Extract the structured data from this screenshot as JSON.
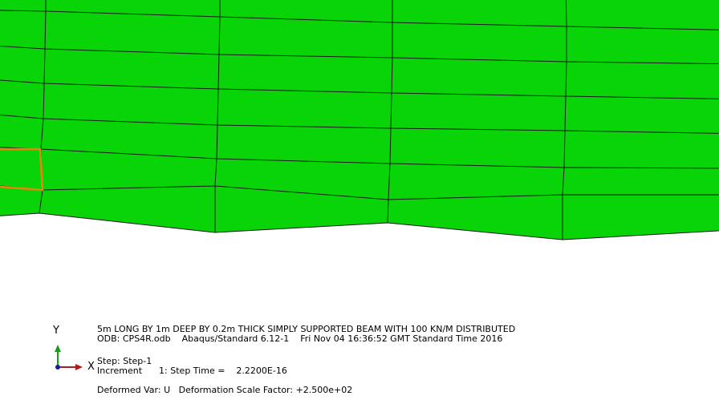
{
  "colors": {
    "mesh_fill": "#08d408",
    "mesh_edge": "#1a1a1a",
    "highlight_edge": "#e8860c",
    "axis_y": "#1a9a1a",
    "axis_x": "#b01a1a",
    "axis_origin": "#1a1aa0"
  },
  "triad": {
    "y_label": "Y",
    "x_label": "X"
  },
  "title_block": {
    "line1": "5m LONG BY 1m DEEP BY 0.2m THICK SIMPLY SUPPORTED BEAM WITH 100 KN/M DISTRIBUTED",
    "line2": "ODB: CPS4R.odb    Abaqus/Standard 6.12-1    Fri Nov 04 16:36:52 GMT Standard Time 2016"
  },
  "state_block": {
    "step": "Step: Step-1",
    "increment": "Increment      1: Step Time =    2.2200E-16"
  },
  "deform_block": {
    "text": "Deformed Var: U   Deformation Scale Factor: +2.500e+02"
  }
}
